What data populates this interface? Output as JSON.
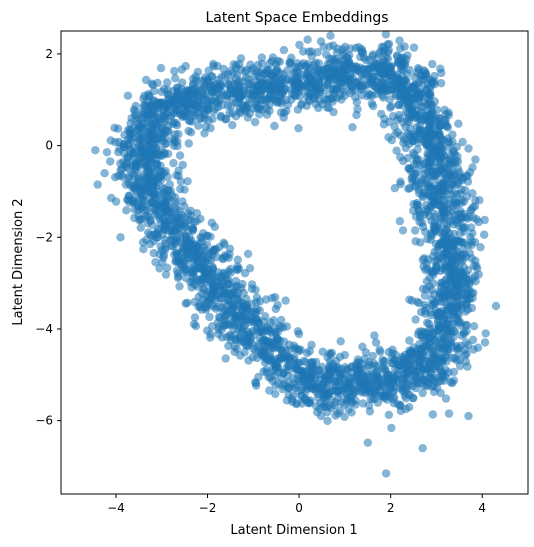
{
  "chart_data": {
    "type": "scatter",
    "title": "Latent Space Embeddings",
    "xlabel": "Latent Dimension 1",
    "ylabel": "Latent Dimension 2",
    "xlim": [
      -5.2,
      5.0
    ],
    "ylim": [
      -7.6,
      2.5
    ],
    "xticks": [
      {
        "value": -4,
        "label": "−4"
      },
      {
        "value": -2,
        "label": "−2"
      },
      {
        "value": 0,
        "label": "0"
      },
      {
        "value": 2,
        "label": "2"
      },
      {
        "value": 4,
        "label": "4"
      }
    ],
    "yticks": [
      {
        "value": 2,
        "label": "2"
      },
      {
        "value": 0,
        "label": "0"
      },
      {
        "value": -2,
        "label": "−2"
      },
      {
        "value": -4,
        "label": "−4"
      },
      {
        "value": -6,
        "label": "−6"
      }
    ],
    "grid": false,
    "legend": "none",
    "marker_color": "#1f77b4",
    "marker_alpha": 0.55,
    "shape": "closed loop of points tracing a rounded triangle",
    "loop_path": [
      [
        -3.4,
        0.5
      ],
      [
        -2.6,
        1.0
      ],
      [
        -1.5,
        1.1
      ],
      [
        -0.5,
        1.3
      ],
      [
        0.5,
        1.5
      ],
      [
        1.5,
        1.6
      ],
      [
        2.3,
        1.5
      ],
      [
        2.6,
        1.0
      ],
      [
        2.8,
        0.2
      ],
      [
        3.0,
        -0.6
      ],
      [
        3.2,
        -1.5
      ],
      [
        3.3,
        -2.5
      ],
      [
        3.3,
        -3.3
      ],
      [
        3.2,
        -4.0
      ],
      [
        3.1,
        -4.7
      ],
      [
        2.6,
        -5.1
      ],
      [
        2.0,
        -5.0
      ],
      [
        1.2,
        -5.3
      ],
      [
        0.5,
        -5.3
      ],
      [
        -0.2,
        -4.9
      ],
      [
        -0.8,
        -4.3
      ],
      [
        -1.4,
        -3.6
      ],
      [
        -2.0,
        -2.8
      ],
      [
        -2.5,
        -2.1
      ],
      [
        -3.0,
        -1.5
      ],
      [
        -3.3,
        -0.8
      ],
      [
        -3.5,
        -0.2
      ],
      [
        -3.4,
        0.5
      ]
    ],
    "spread": 0.32,
    "point_count": 3600,
    "outliers": [
      [
        1.9,
        -7.15
      ],
      [
        0.95,
        2.1
      ],
      [
        -4.45,
        -0.1
      ],
      [
        4.3,
        -3.5
      ],
      [
        3.7,
        -5.9
      ],
      [
        -3.9,
        -2.0
      ],
      [
        2.7,
        -6.6
      ],
      [
        1.6,
        1.95
      ]
    ]
  }
}
